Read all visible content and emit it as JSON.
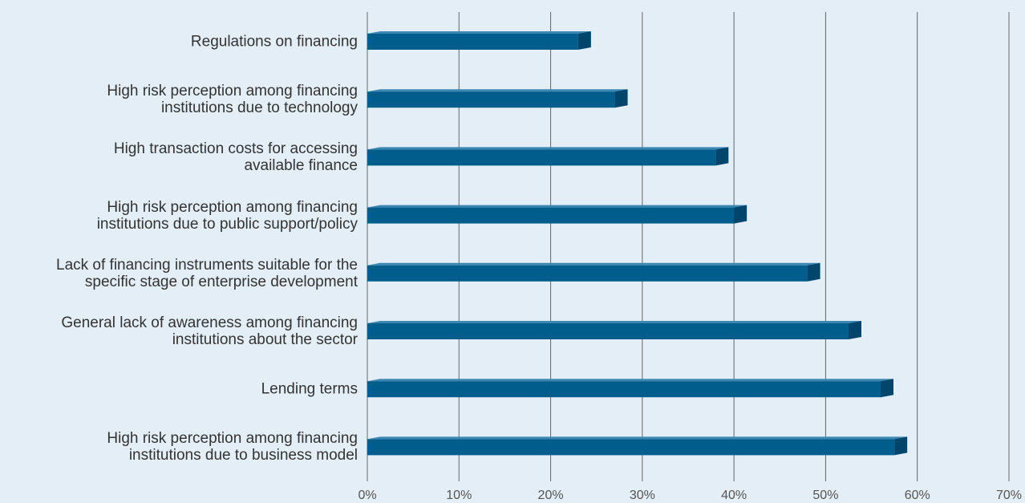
{
  "chart_data": {
    "type": "bar",
    "orientation": "horizontal",
    "categories": [
      "Regulations on financing",
      "High risk perception among financing\ninstitutions due to technology",
      "High transaction costs for accessing\navailable finance",
      "High risk perception among financing\ninstitutions due to public support/policy",
      "Lack of financing instruments suitable for the\nspecific stage of enterprise development",
      "General lack of awareness among financing\ninstitutions about the sector",
      "Lending terms",
      "High risk perception among financing\ninstitutions due to business model"
    ],
    "values": [
      23,
      27,
      38,
      40,
      48,
      52.5,
      56,
      57.5
    ],
    "color": "#005d8c",
    "xlim": [
      0,
      70
    ],
    "xticks": [
      {
        "value": 0,
        "label": "0%"
      },
      {
        "value": 10,
        "label": "10%"
      },
      {
        "value": 20,
        "label": "20%"
      },
      {
        "value": 30,
        "label": "30%"
      },
      {
        "value": 40,
        "label": "40%"
      },
      {
        "value": 50,
        "label": "50%"
      },
      {
        "value": 60,
        "label": "60%"
      },
      {
        "value": 70,
        "label": "70%"
      }
    ],
    "grid": true
  }
}
